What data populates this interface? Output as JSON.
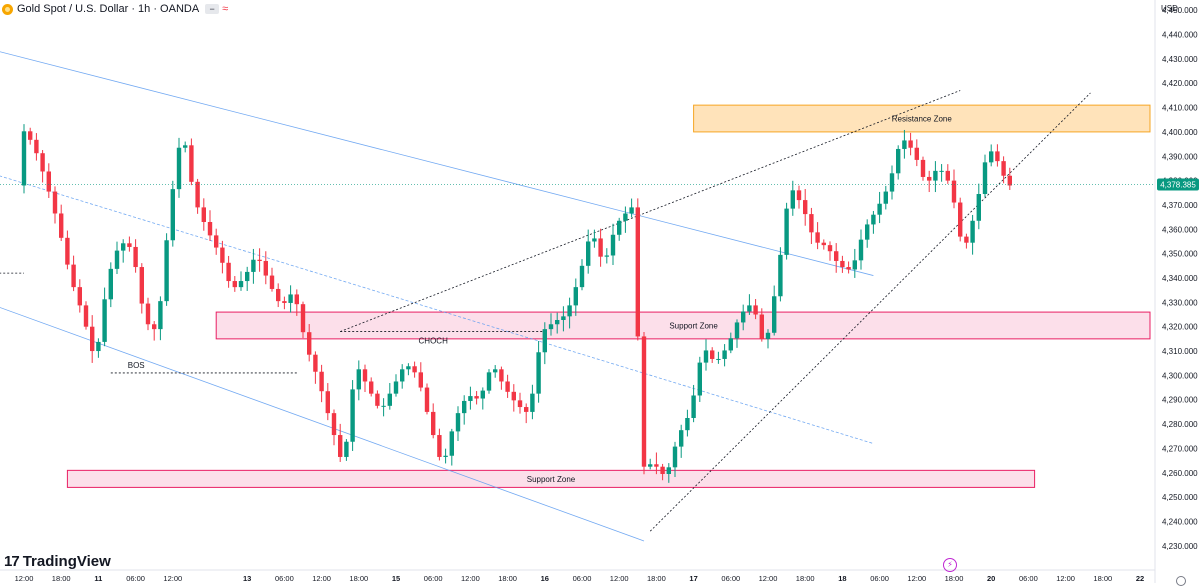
{
  "header": {
    "title": "Gold Spot / U.S. Dollar · 1h · OANDA",
    "logo_icon": "gold-coin-icon"
  },
  "currency": "USD",
  "brand": {
    "mark": "17",
    "name": "TradingView"
  },
  "colors": {
    "up": "#089981",
    "down": "#f23645",
    "resistance": "#f6a623",
    "support": "#e91e63",
    "channel": "#5b9bf0"
  },
  "chart_data": {
    "type": "candlestick",
    "instrument": "XAUUSD",
    "timeframe": "1h",
    "last_price": "4,378.385",
    "y_range": [
      4225,
      4455
    ],
    "y_ticks": [
      "4,230.000",
      "4,240.000",
      "4,250.000",
      "4,260.000",
      "4,270.000",
      "4,280.000",
      "4,290.000",
      "4,300.000",
      "4,310.000",
      "4,320.000",
      "4,330.000",
      "4,340.000",
      "4,350.000",
      "4,360.000",
      "4,370.000",
      "4,380.000",
      "4,390.000",
      "4,400.000",
      "4,410.000",
      "4,420.000",
      "4,430.000",
      "4,440.000",
      "4,450.000"
    ],
    "x_ticks": [
      {
        "label": "12:00",
        "t": 0
      },
      {
        "label": "18:00",
        "t": 6
      },
      {
        "label": "11",
        "t": 12
      },
      {
        "label": "06:00",
        "t": 18
      },
      {
        "label": "12:00",
        "t": 24
      },
      {
        "label": "13",
        "t": 36
      },
      {
        "label": "06:00",
        "t": 42
      },
      {
        "label": "12:00",
        "t": 48
      },
      {
        "label": "18:00",
        "t": 54
      },
      {
        "label": "15",
        "t": 60
      },
      {
        "label": "06:00",
        "t": 66
      },
      {
        "label": "12:00",
        "t": 72
      },
      {
        "label": "18:00",
        "t": 78
      },
      {
        "label": "16",
        "t": 84
      },
      {
        "label": "06:00",
        "t": 90
      },
      {
        "label": "12:00",
        "t": 96
      },
      {
        "label": "18:00",
        "t": 102
      },
      {
        "label": "17",
        "t": 108
      },
      {
        "label": "06:00",
        "t": 114
      },
      {
        "label": "12:00",
        "t": 120
      },
      {
        "label": "18:00",
        "t": 126
      },
      {
        "label": "18",
        "t": 132
      },
      {
        "label": "06:00",
        "t": 138
      },
      {
        "label": "12:00",
        "t": 144
      },
      {
        "label": "18:00",
        "t": 150
      },
      {
        "label": "20",
        "t": 156
      },
      {
        "label": "06:00",
        "t": 162
      },
      {
        "label": "12:00",
        "t": 168
      },
      {
        "label": "18:00",
        "t": 174
      },
      {
        "label": "22",
        "t": 180
      }
    ],
    "anchors": [
      [
        0,
        4402
      ],
      [
        2,
        4395
      ],
      [
        4,
        4380
      ],
      [
        6,
        4362
      ],
      [
        8,
        4340
      ],
      [
        10,
        4325
      ],
      [
        12,
        4305
      ],
      [
        14,
        4340
      ],
      [
        16,
        4355
      ],
      [
        18,
        4352
      ],
      [
        20,
        4322
      ],
      [
        22,
        4318
      ],
      [
        24,
        4368
      ],
      [
        26,
        4402
      ],
      [
        28,
        4372
      ],
      [
        30,
        4360
      ],
      [
        32,
        4350
      ],
      [
        34,
        4335
      ],
      [
        36,
        4340
      ],
      [
        38,
        4350
      ],
      [
        40,
        4338
      ],
      [
        42,
        4328
      ],
      [
        44,
        4335
      ],
      [
        46,
        4312
      ],
      [
        48,
        4298
      ],
      [
        50,
        4280
      ],
      [
        52,
        4262
      ],
      [
        54,
        4305
      ],
      [
        56,
        4295
      ],
      [
        58,
        4285
      ],
      [
        60,
        4295
      ],
      [
        62,
        4305
      ],
      [
        64,
        4300
      ],
      [
        66,
        4280
      ],
      [
        68,
        4262
      ],
      [
        70,
        4282
      ],
      [
        72,
        4292
      ],
      [
        74,
        4290
      ],
      [
        76,
        4305
      ],
      [
        78,
        4295
      ],
      [
        80,
        4288
      ],
      [
        82,
        4284
      ],
      [
        84,
        4318
      ],
      [
        86,
        4322
      ],
      [
        88,
        4325
      ],
      [
        90,
        4340
      ],
      [
        92,
        4360
      ],
      [
        94,
        4345
      ],
      [
        96,
        4362
      ],
      [
        98,
        4368
      ],
      [
        99,
        4370
      ],
      [
        100,
        4262
      ],
      [
        102,
        4264
      ],
      [
        104,
        4258
      ],
      [
        106,
        4275
      ],
      [
        108,
        4285
      ],
      [
        110,
        4312
      ],
      [
        112,
        4305
      ],
      [
        114,
        4312
      ],
      [
        116,
        4325
      ],
      [
        118,
        4330
      ],
      [
        120,
        4310
      ],
      [
        122,
        4340
      ],
      [
        124,
        4378
      ],
      [
        126,
        4370
      ],
      [
        128,
        4355
      ],
      [
        130,
        4353
      ],
      [
        132,
        4345
      ],
      [
        134,
        4343
      ],
      [
        136,
        4360
      ],
      [
        138,
        4368
      ],
      [
        140,
        4378
      ],
      [
        142,
        4398
      ],
      [
        144,
        4392
      ],
      [
        146,
        4378
      ],
      [
        148,
        4386
      ],
      [
        150,
        4378
      ],
      [
        152,
        4350
      ],
      [
        154,
        4368
      ],
      [
        156,
        4394
      ],
      [
        158,
        4386
      ],
      [
        159,
        4378
      ]
    ],
    "zones": [
      {
        "label": "Resistance Zone",
        "t0": 108,
        "t1": 186,
        "low": 4400,
        "high": 4411
      },
      {
        "label": "Support Zone",
        "t0": 31,
        "t1": 185,
        "low": 4315,
        "high": 4326
      },
      {
        "label": "Support Zone",
        "t0": 7,
        "t1": 163,
        "low": 4254,
        "high": 4261
      }
    ],
    "annotations": [
      {
        "label": "BOS",
        "t": 16,
        "price": 4301
      },
      {
        "label": "CHOCH",
        "t": 66,
        "price": 4318
      }
    ]
  }
}
